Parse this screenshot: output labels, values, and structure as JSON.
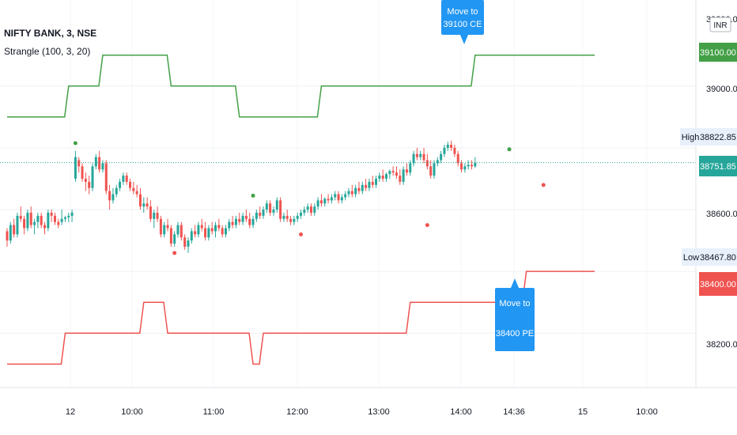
{
  "header": {
    "symbol_line": "NIFTY BANK, 3, NSE",
    "indicator_line": "Strangle (100, 3, 20)"
  },
  "currency": "INR",
  "price_axis": {
    "ticks": [
      "39000.00",
      "38600.00",
      "38200.00"
    ],
    "top_partial": "39200.00"
  },
  "badges": {
    "ce": {
      "text": "39100.00",
      "color": "#43a047"
    },
    "last": {
      "text": "38751.85",
      "color": "#26a69a"
    },
    "pe": {
      "text": "38400.00",
      "color": "#ef5350"
    },
    "high": {
      "label": "High",
      "text": "38822.85"
    },
    "low": {
      "label": "Low",
      "text": "38467.80"
    }
  },
  "time_axis": {
    "labels": [
      "12",
      "10:00",
      "11:00",
      "12:00",
      "13:00",
      "14:00",
      "14:36",
      "15",
      "10:00"
    ]
  },
  "callouts": {
    "ce": {
      "line1": "Move to",
      "line2": "39100 CE",
      "color": "#2196f3"
    },
    "pe": {
      "line1": "Move to",
      "line2": "38400 PE",
      "color": "#2196f3"
    }
  },
  "chart_data": {
    "type": "candlestick",
    "series": [
      {
        "name": "Strangle (100, 3, 20)",
        "color": "#43a047",
        "steps": [
          [
            0,
            38900
          ],
          [
            18,
            39000
          ],
          [
            28,
            39100
          ],
          [
            48,
            39000
          ],
          [
            68,
            38900
          ],
          [
            92,
            39000
          ],
          [
            137,
            39100
          ],
          [
            172,
            39100
          ]
        ]
      },
      {
        "name": "Strangle (100, 3, 20)",
        "color": "#ef5350",
        "steps": [
          [
            0,
            38100
          ],
          [
            17,
            38200
          ],
          [
            40,
            38300
          ],
          [
            47,
            38200
          ],
          [
            72,
            38100
          ],
          [
            75,
            38200
          ],
          [
            118,
            38300
          ],
          [
            152,
            38400
          ],
          [
            172,
            38400
          ]
        ]
      }
    ],
    "y_range": [
      38060,
      39240
    ],
    "candles": [
      [
        38530,
        38540,
        38480,
        38500
      ],
      [
        38500,
        38560,
        38490,
        38550
      ],
      [
        38550,
        38570,
        38510,
        38520
      ],
      [
        38520,
        38590,
        38510,
        38580
      ],
      [
        38580,
        38610,
        38560,
        38570
      ],
      [
        38570,
        38580,
        38520,
        38540
      ],
      [
        38540,
        38600,
        38530,
        38590
      ],
      [
        38590,
        38610,
        38540,
        38550
      ],
      [
        38550,
        38570,
        38520,
        38560
      ],
      [
        38560,
        38590,
        38540,
        38580
      ],
      [
        38580,
        38590,
        38540,
        38550
      ],
      [
        38550,
        38560,
        38520,
        38540
      ],
      [
        38540,
        38600,
        38530,
        38590
      ],
      [
        38590,
        38600,
        38560,
        38580
      ],
      [
        38580,
        38590,
        38550,
        38560
      ],
      [
        38560,
        38570,
        38540,
        38550
      ],
      [
        38560,
        38600,
        38550,
        38570
      ],
      [
        38570,
        38580,
        38560,
        38575
      ],
      [
        38575,
        38590,
        38560,
        38580
      ],
      [
        38580,
        38600,
        38560,
        38590
      ],
      [
        38700,
        38790,
        38690,
        38770
      ],
      [
        38760,
        38770,
        38720,
        38740
      ],
      [
        38740,
        38750,
        38690,
        38700
      ],
      [
        38700,
        38720,
        38660,
        38690
      ],
      [
        38690,
        38710,
        38650,
        38670
      ],
      [
        38670,
        38750,
        38660,
        38740
      ],
      [
        38740,
        38780,
        38730,
        38770
      ],
      [
        38770,
        38790,
        38720,
        38730
      ],
      [
        38730,
        38760,
        38720,
        38750
      ],
      [
        38750,
        38760,
        38650,
        38660
      ],
      [
        38660,
        38680,
        38600,
        38630
      ],
      [
        38630,
        38670,
        38620,
        38650
      ],
      [
        38650,
        38680,
        38640,
        38670
      ],
      [
        38670,
        38700,
        38660,
        38690
      ],
      [
        38690,
        38720,
        38680,
        38710
      ],
      [
        38710,
        38720,
        38680,
        38690
      ],
      [
        38690,
        38700,
        38660,
        38670
      ],
      [
        38670,
        38690,
        38650,
        38660
      ],
      [
        38660,
        38680,
        38640,
        38650
      ],
      [
        38650,
        38670,
        38600,
        38610
      ],
      [
        38610,
        38640,
        38590,
        38620
      ],
      [
        38620,
        38640,
        38600,
        38610
      ],
      [
        38610,
        38630,
        38560,
        38570
      ],
      [
        38570,
        38600,
        38540,
        38590
      ],
      [
        38590,
        38610,
        38560,
        38570
      ],
      [
        38570,
        38580,
        38510,
        38520
      ],
      [
        38520,
        38560,
        38510,
        38550
      ],
      [
        38550,
        38570,
        38530,
        38540
      ],
      [
        38540,
        38550,
        38480,
        38490
      ],
      [
        38490,
        38530,
        38480,
        38520
      ],
      [
        38520,
        38560,
        38510,
        38550
      ],
      [
        38550,
        38560,
        38500,
        38510
      ],
      [
        38510,
        38520,
        38470,
        38480
      ],
      [
        38480,
        38510,
        38460,
        38500
      ],
      [
        38500,
        38540,
        38490,
        38530
      ],
      [
        38530,
        38550,
        38510,
        38520
      ],
      [
        38520,
        38560,
        38510,
        38550
      ],
      [
        38550,
        38570,
        38530,
        38540
      ],
      [
        38540,
        38560,
        38500,
        38510
      ],
      [
        38510,
        38550,
        38500,
        38540
      ],
      [
        38540,
        38560,
        38520,
        38530
      ],
      [
        38530,
        38560,
        38510,
        38550
      ],
      [
        38550,
        38570,
        38530,
        38540
      ],
      [
        38540,
        38550,
        38510,
        38520
      ],
      [
        38520,
        38550,
        38510,
        38540
      ],
      [
        38540,
        38570,
        38530,
        38560
      ],
      [
        38560,
        38580,
        38540,
        38550
      ],
      [
        38550,
        38580,
        38540,
        38570
      ],
      [
        38570,
        38590,
        38550,
        38560
      ],
      [
        38560,
        38590,
        38550,
        38580
      ],
      [
        38580,
        38600,
        38560,
        38570
      ],
      [
        38570,
        38590,
        38540,
        38550
      ],
      [
        38550,
        38580,
        38540,
        38570
      ],
      [
        38570,
        38600,
        38560,
        38590
      ],
      [
        38590,
        38610,
        38570,
        38580
      ],
      [
        38580,
        38610,
        38570,
        38600
      ],
      [
        38600,
        38630,
        38590,
        38620
      ],
      [
        38620,
        38630,
        38580,
        38590
      ],
      [
        38590,
        38610,
        38580,
        38600
      ],
      [
        38600,
        38640,
        38590,
        38630
      ],
      [
        38630,
        38640,
        38560,
        38570
      ],
      [
        38570,
        38590,
        38560,
        38580
      ],
      [
        38580,
        38600,
        38560,
        38570
      ],
      [
        38570,
        38580,
        38550,
        38560
      ],
      [
        38560,
        38580,
        38550,
        38570
      ],
      [
        38570,
        38590,
        38560,
        38580
      ],
      [
        38580,
        38600,
        38570,
        38590
      ],
      [
        38590,
        38610,
        38580,
        38600
      ],
      [
        38600,
        38620,
        38590,
        38610
      ],
      [
        38610,
        38620,
        38580,
        38590
      ],
      [
        38590,
        38620,
        38580,
        38610
      ],
      [
        38610,
        38640,
        38600,
        38630
      ],
      [
        38630,
        38650,
        38610,
        38620
      ],
      [
        38620,
        38640,
        38610,
        38635
      ],
      [
        38635,
        38650,
        38620,
        38630
      ],
      [
        38630,
        38650,
        38620,
        38640
      ],
      [
        38640,
        38660,
        38630,
        38650
      ],
      [
        38650,
        38660,
        38620,
        38630
      ],
      [
        38630,
        38650,
        38620,
        38640
      ],
      [
        38640,
        38660,
        38630,
        38650
      ],
      [
        38650,
        38670,
        38640,
        38660
      ],
      [
        38660,
        38680,
        38640,
        38650
      ],
      [
        38650,
        38680,
        38640,
        38670
      ],
      [
        38670,
        38690,
        38650,
        38660
      ],
      [
        38660,
        38690,
        38650,
        38680
      ],
      [
        38680,
        38700,
        38660,
        38670
      ],
      [
        38670,
        38700,
        38660,
        38690
      ],
      [
        38690,
        38710,
        38670,
        38680
      ],
      [
        38680,
        38710,
        38670,
        38700
      ],
      [
        38700,
        38720,
        38690,
        38710
      ],
      [
        38710,
        38730,
        38690,
        38700
      ],
      [
        38700,
        38720,
        38690,
        38715
      ],
      [
        38715,
        38730,
        38700,
        38725
      ],
      [
        38725,
        38740,
        38710,
        38720
      ],
      [
        38720,
        38740,
        38700,
        38710
      ],
      [
        38710,
        38730,
        38680,
        38690
      ],
      [
        38690,
        38740,
        38680,
        38730
      ],
      [
        38730,
        38750,
        38710,
        38720
      ],
      [
        38720,
        38760,
        38710,
        38750
      ],
      [
        38750,
        38790,
        38740,
        38780
      ],
      [
        38780,
        38800,
        38760,
        38770
      ],
      [
        38770,
        38790,
        38760,
        38780
      ],
      [
        38780,
        38800,
        38750,
        38760
      ],
      [
        38760,
        38780,
        38730,
        38740
      ],
      [
        38740,
        38760,
        38700,
        38710
      ],
      [
        38710,
        38760,
        38700,
        38750
      ],
      [
        38750,
        38770,
        38740,
        38760
      ],
      [
        38760,
        38790,
        38750,
        38780
      ],
      [
        38780,
        38810,
        38770,
        38800
      ],
      [
        38800,
        38820,
        38790,
        38810
      ],
      [
        38810,
        38823,
        38790,
        38800
      ],
      [
        38800,
        38810,
        38770,
        38780
      ],
      [
        38780,
        38790,
        38740,
        38750
      ],
      [
        38750,
        38760,
        38720,
        38730
      ],
      [
        38730,
        38750,
        38720,
        38740
      ],
      [
        38740,
        38760,
        38730,
        38745
      ],
      [
        38745,
        38760,
        38730,
        38740
      ],
      [
        38740,
        38770,
        38735,
        38752
      ]
    ],
    "markers": {
      "green_above": [
        [
          20,
          38810
        ],
        [
          72,
          38640
        ],
        [
          147,
          38790
        ]
      ],
      "red_below": [
        [
          49,
          38470
        ],
        [
          86,
          38530
        ],
        [
          123,
          38560
        ],
        [
          157,
          38690
        ]
      ]
    }
  }
}
